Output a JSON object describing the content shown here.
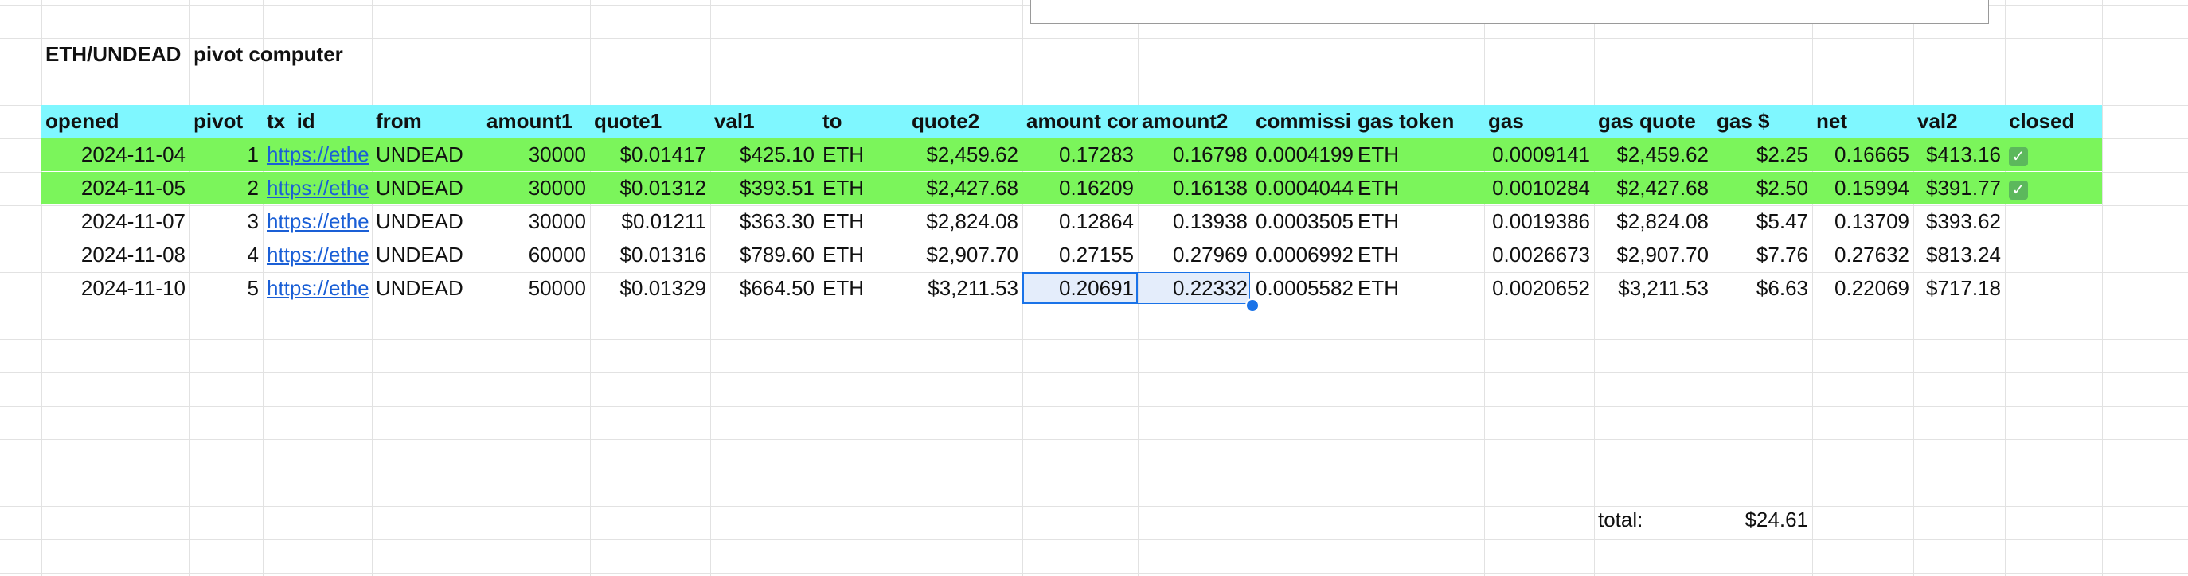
{
  "title": {
    "pair": "ETH/UNDEAD",
    "name": "pivot computer"
  },
  "headers": [
    "opened",
    "pivot",
    "tx_id",
    "from",
    "amount1",
    "quote1",
    "val1",
    "to",
    "quote2",
    "amount con",
    "amount2",
    "commissi",
    "gas token",
    "gas",
    "gas quote",
    "gas $",
    "net",
    "val2",
    "closed"
  ],
  "rows": [
    [
      "2024-11-04",
      "1",
      "https://ethe",
      "UNDEAD",
      "30000",
      "$0.01417",
      "$425.10",
      "ETH",
      "$2,459.62",
      "0.17283",
      "0.16798",
      "0.0004199",
      "ETH",
      "0.0009141",
      "$2,459.62",
      "$2.25",
      "0.16665",
      "$413.16",
      "✓"
    ],
    [
      "2024-11-05",
      "2",
      "https://ethe",
      "UNDEAD",
      "30000",
      "$0.01312",
      "$393.51",
      "ETH",
      "$2,427.68",
      "0.16209",
      "0.16138",
      "0.0004044",
      "ETH",
      "0.0010284",
      "$2,427.68",
      "$2.50",
      "0.15994",
      "$391.77",
      "✓"
    ],
    [
      "2024-11-07",
      "3",
      "https://ethe",
      "UNDEAD",
      "30000",
      "$0.01211",
      "$363.30",
      "ETH",
      "$2,824.08",
      "0.12864",
      "0.13938",
      "0.0003505",
      "ETH",
      "0.0019386",
      "$2,824.08",
      "$5.47",
      "0.13709",
      "$393.62",
      ""
    ],
    [
      "2024-11-08",
      "4",
      "https://ethe",
      "UNDEAD",
      "60000",
      "$0.01316",
      "$789.60",
      "ETH",
      "$2,907.70",
      "0.27155",
      "0.27969",
      "0.0006992",
      "ETH",
      "0.0026673",
      "$2,907.70",
      "$7.76",
      "0.27632",
      "$813.24",
      ""
    ],
    [
      "2024-11-10",
      "5",
      "https://ethe",
      "UNDEAD",
      "50000",
      "$0.01329",
      "$664.50",
      "ETH",
      "$3,211.53",
      "0.20691",
      "0.22332",
      "0.0005582",
      "ETH",
      "0.0020652",
      "$3,211.53",
      "$6.63",
      "0.22069",
      "$717.18",
      ""
    ]
  ],
  "total": {
    "label": "total:",
    "value": "$24.61"
  },
  "colors": {
    "header_bg": "#7ff7ff",
    "closed_row_bg": "#7bf55b",
    "link": "#1a5fd6",
    "selection": "#1a73e8"
  }
}
